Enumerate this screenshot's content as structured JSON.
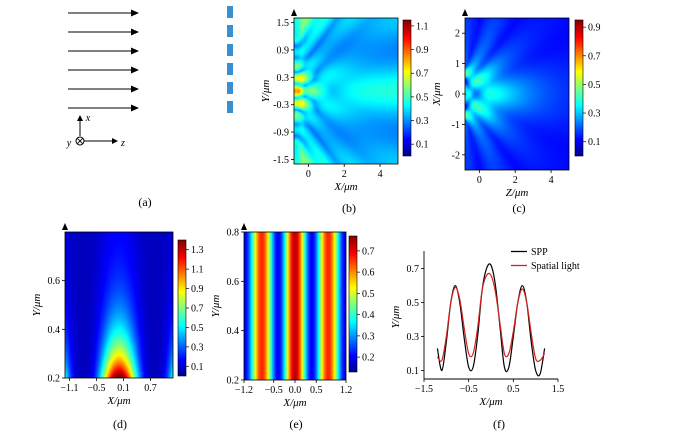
{
  "panel_labels": [
    "(a)",
    "(b)",
    "(c)",
    "(d)",
    "(e)",
    "(f)"
  ],
  "panel_a": {
    "arrow_count": 6,
    "axis_x": "x",
    "axis_y": "y",
    "axis_z": "z",
    "slit_count": 6
  },
  "colormap": "jet",
  "colors": {
    "spp_line": "#000000",
    "spatial_line": "#d42020",
    "slit": "#3a8fd0"
  },
  "chart_data": [
    {
      "id": "b",
      "type": "heatmap",
      "xlabel": "X/μm",
      "ylabel": "Y/μm",
      "xlim": [
        -0.8,
        5
      ],
      "ylim": [
        -1.6,
        1.6
      ],
      "xticks": [
        "0",
        "2",
        "4"
      ],
      "xtick_values": [
        0,
        2,
        4
      ],
      "yticks": [
        "1.5",
        "0.9",
        "0.3",
        "-0.3",
        "-0.9",
        "-1.5"
      ],
      "ytick_values": [
        1.5,
        0.9,
        0.3,
        -0.3,
        -0.9,
        -1.5
      ],
      "colorbar_ticks": [
        "1.1",
        "0.9",
        "0.7",
        "0.5",
        "0.3",
        "0.1"
      ],
      "colorbar_values": [
        1.1,
        0.9,
        0.7,
        0.5,
        0.3,
        0.1
      ],
      "colorbar_range": [
        0,
        1.15
      ]
    },
    {
      "id": "c",
      "type": "heatmap",
      "xlabel": "Z/μm",
      "ylabel": "X/μm",
      "xlim": [
        -0.8,
        5
      ],
      "ylim": [
        -2.5,
        2.5
      ],
      "xticks": [
        "0",
        "2",
        "4"
      ],
      "xtick_values": [
        0,
        2,
        4
      ],
      "yticks": [
        "2",
        "1",
        "0",
        "-1",
        "-2"
      ],
      "ytick_values": [
        2,
        1,
        0,
        -1,
        -2
      ],
      "colorbar_ticks": [
        "0.9",
        "0.7",
        "0.5",
        "0.3",
        "0.1"
      ],
      "colorbar_values": [
        0.9,
        0.7,
        0.5,
        0.3,
        0.1
      ],
      "colorbar_range": [
        0,
        0.95
      ]
    },
    {
      "id": "d",
      "type": "heatmap",
      "xlabel": "X/μm",
      "ylabel": "Y/μm",
      "xlim": [
        -1.2,
        1.2
      ],
      "ylim": [
        0.2,
        0.8
      ],
      "xticks": [
        "−1.1",
        "−0.5",
        "0.1",
        "0.7"
      ],
      "xtick_values": [
        -1.1,
        -0.5,
        0.1,
        0.7
      ],
      "yticks": [
        "0.6",
        "0.4",
        "0.2"
      ],
      "ytick_values": [
        0.6,
        0.4,
        0.2
      ],
      "colorbar_ticks": [
        "1.3",
        "1.1",
        "0.9",
        "0.7",
        "0.5",
        "0.3",
        "0.1"
      ],
      "colorbar_values": [
        1.3,
        1.1,
        0.9,
        0.7,
        0.5,
        0.3,
        0.1
      ],
      "colorbar_range": [
        0,
        1.4
      ]
    },
    {
      "id": "e",
      "type": "heatmap",
      "xlabel": "X/μm",
      "ylabel": "Y/μm",
      "xlim": [
        -1.2,
        1.2
      ],
      "ylim": [
        0.2,
        0.8
      ],
      "xticks": [
        "−1.2",
        "−0.5",
        "0.0",
        "0.5",
        "1.2"
      ],
      "xtick_values": [
        -1.2,
        -0.5,
        0,
        0.5,
        1.2
      ],
      "yticks": [
        "0.8",
        "0.6",
        "0.4",
        "0.2"
      ],
      "ytick_values": [
        0.8,
        0.6,
        0.4,
        0.2
      ],
      "colorbar_ticks": [
        "0.7",
        "0.6",
        "0.5",
        "0.4",
        "0.3",
        "0.2"
      ],
      "colorbar_values": [
        0.7,
        0.6,
        0.5,
        0.4,
        0.3,
        0.2
      ],
      "colorbar_range": [
        0.13,
        0.77
      ]
    },
    {
      "id": "f",
      "type": "line",
      "xlabel": "X/μm",
      "ylabel": "Y/μm",
      "xlim": [
        -1.5,
        1.5
      ],
      "ylim": [
        0.05,
        0.78
      ],
      "xticks": [
        "−1.5",
        "−0.5",
        "0.5",
        "1.5"
      ],
      "xtick_values": [
        -1.5,
        -0.5,
        0.5,
        1.5
      ],
      "yticks": [
        "0.7",
        "0.5",
        "0.3",
        "0.1"
      ],
      "ytick_values": [
        0.7,
        0.5,
        0.3,
        0.1
      ],
      "legend_position": "top-right",
      "x": [
        -1.2,
        -1.1,
        -1.0,
        -0.9,
        -0.8,
        -0.7,
        -0.6,
        -0.5,
        -0.4,
        -0.3,
        -0.2,
        -0.1,
        0.0,
        0.1,
        0.2,
        0.3,
        0.4,
        0.5,
        0.6,
        0.7,
        0.8,
        0.9,
        1.0,
        1.1,
        1.2
      ],
      "series": [
        {
          "name": "SPP",
          "color": "#000000",
          "values": [
            0.23,
            0.1,
            0.27,
            0.5,
            0.6,
            0.5,
            0.29,
            0.12,
            0.12,
            0.3,
            0.57,
            0.7,
            0.72,
            0.6,
            0.36,
            0.12,
            0.12,
            0.3,
            0.5,
            0.6,
            0.5,
            0.27,
            0.1,
            0.08,
            0.23
          ]
        },
        {
          "name": "Spatial light",
          "color": "#d42020",
          "values": [
            0.18,
            0.16,
            0.3,
            0.5,
            0.59,
            0.52,
            0.35,
            0.2,
            0.2,
            0.35,
            0.57,
            0.66,
            0.66,
            0.56,
            0.38,
            0.2,
            0.2,
            0.33,
            0.5,
            0.58,
            0.5,
            0.32,
            0.17,
            0.16,
            0.2
          ]
        }
      ]
    }
  ]
}
